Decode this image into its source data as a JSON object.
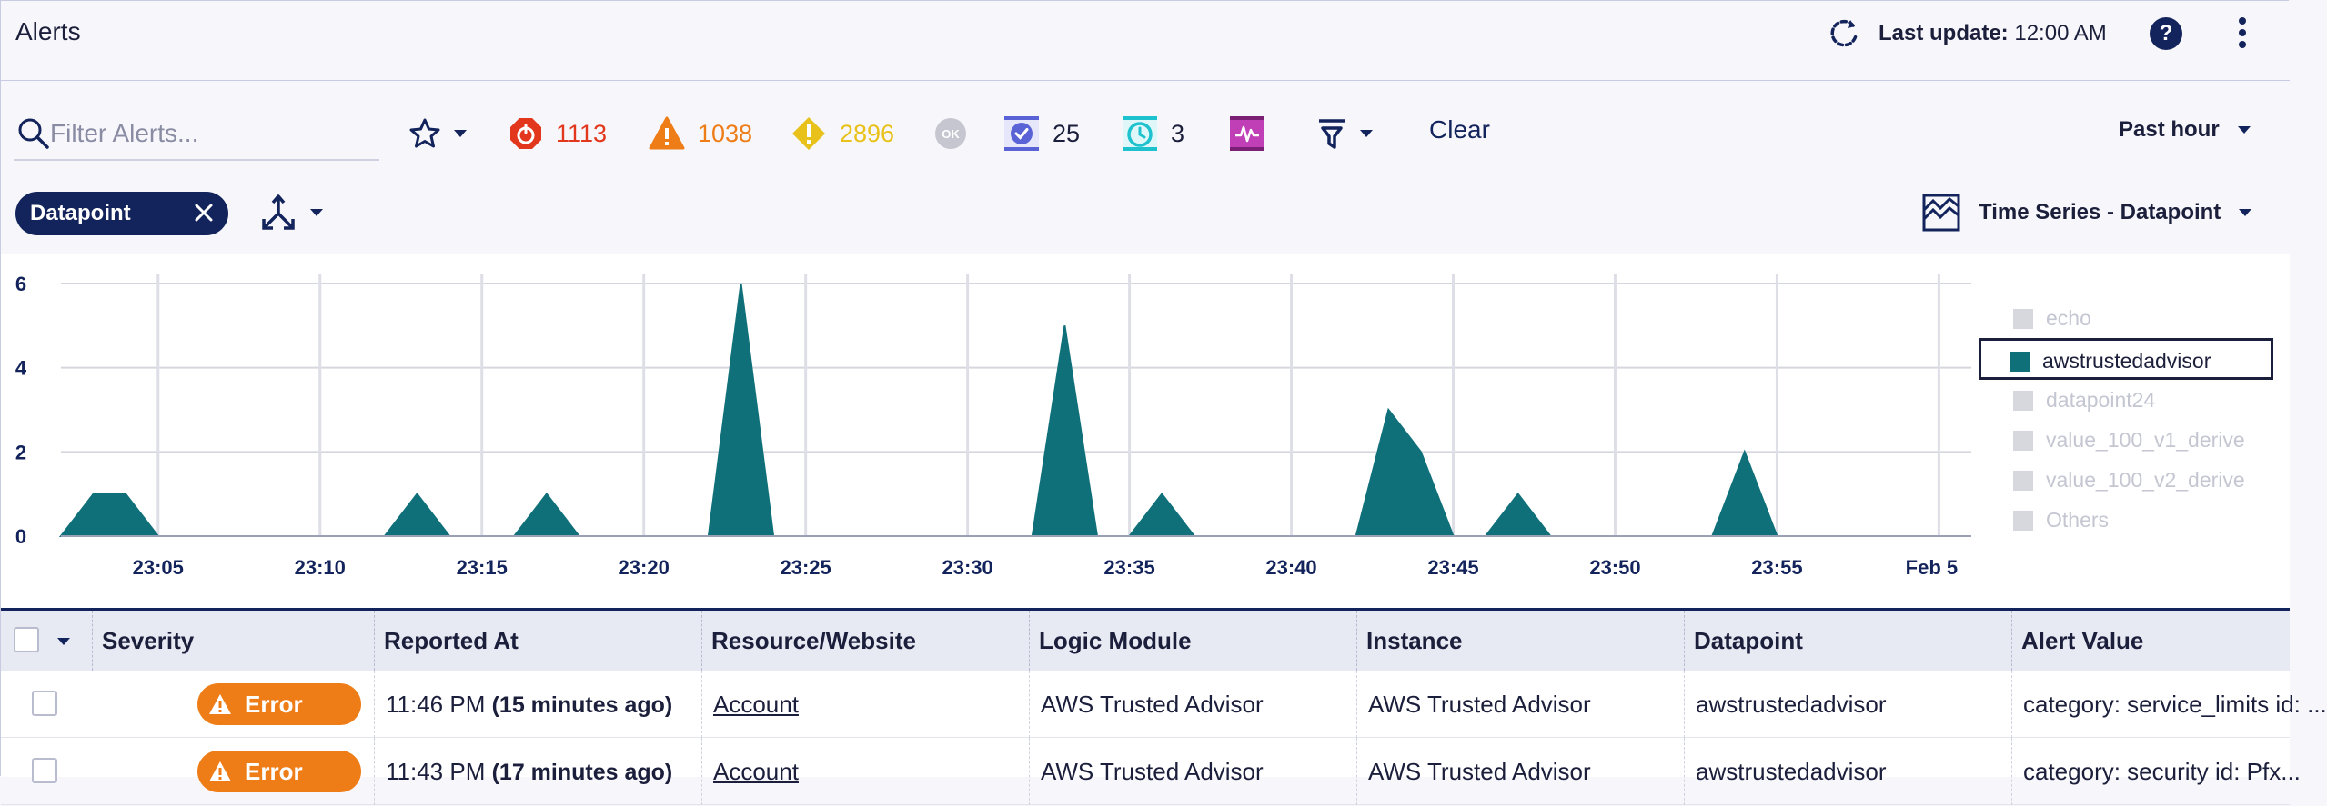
{
  "header": {
    "title": "Alerts",
    "last_update_label": "Last update:",
    "last_update_value": "12:00 AM",
    "help_label": "?"
  },
  "toolbar": {
    "search_placeholder": "Filter Alerts...",
    "counts": {
      "critical": "1113",
      "error": "1038",
      "warning": "2896",
      "acknowledged": "25",
      "sdt": "3"
    },
    "ok_label": "OK",
    "clear_label": "Clear",
    "time_range": "Past hour",
    "filter_chip": "Datapoint",
    "view_label": "Time Series - Datapoint"
  },
  "colors": {
    "navy": "#13235b",
    "critical": "#e2371d",
    "error": "#ee7d18",
    "warning": "#e8c21b",
    "acknowledged": "#5a63d6",
    "sdt": "#1ec2cf",
    "anomaly": "#c03fb7",
    "series": "#10707a"
  },
  "chart_data": {
    "type": "area",
    "title": "",
    "xlabel": "",
    "ylabel": "",
    "ylim": [
      0,
      6
    ],
    "yticks": [
      "0",
      "2",
      "4",
      "6"
    ],
    "xticks": [
      "23:05",
      "23:10",
      "23:15",
      "23:20",
      "23:25",
      "23:30",
      "23:35",
      "23:40",
      "23:45",
      "23:50",
      "23:55",
      "Feb 5"
    ],
    "x_minutes": [
      23.1,
      24.1,
      25.1,
      26.1,
      27.1,
      28.1,
      29.1,
      30.1,
      31.1,
      32.1,
      33.1,
      34.1,
      35.1,
      36.1,
      37.1,
      38.1,
      39.1,
      40.1,
      41.1,
      42.1,
      43.1,
      44.1,
      45.1,
      46.1,
      47.1,
      48.1,
      49.1,
      50.1,
      51.1,
      52.1,
      53.1,
      54.1,
      55.1,
      56.1,
      57.1,
      58.1,
      59.1,
      60.1,
      61.1,
      62.1,
      63.1,
      64.1,
      65.1,
      66.1,
      67.1,
      68.1,
      69.1,
      70.1,
      71.1,
      72.1,
      73.1,
      74.1,
      75.1,
      76.1,
      77.1,
      78.1,
      79.1,
      80.1,
      81.1,
      82.1,
      83.1
    ],
    "series": [
      {
        "name": "awstrustedadvisor",
        "points": [
          [
            0.0,
            0
          ],
          [
            1.0,
            1
          ],
          [
            2.0,
            1
          ],
          [
            3.0,
            0
          ],
          [
            10.0,
            0
          ],
          [
            11.0,
            1
          ],
          [
            12.0,
            0
          ],
          [
            14.0,
            0
          ],
          [
            15.0,
            1
          ],
          [
            16.0,
            0
          ],
          [
            20.0,
            0
          ],
          [
            21.0,
            6
          ],
          [
            22.0,
            0
          ],
          [
            30.0,
            0
          ],
          [
            31.0,
            5
          ],
          [
            32.0,
            0
          ],
          [
            33.0,
            0
          ],
          [
            34.0,
            1
          ],
          [
            35.0,
            0
          ],
          [
            40.0,
            0
          ],
          [
            41.0,
            3
          ],
          [
            42.0,
            2
          ],
          [
            43.0,
            0
          ],
          [
            44.0,
            0
          ],
          [
            45.0,
            1
          ],
          [
            46.0,
            0
          ],
          [
            51.0,
            0
          ],
          [
            52.0,
            2
          ],
          [
            53.0,
            0
          ],
          [
            59.0,
            0
          ]
        ]
      }
    ],
    "legend": [
      "echo",
      "awstrustedadvisor",
      "datapoint24",
      "value_100_v1_derive",
      "value_100_v2_derive",
      "Others"
    ],
    "legend_active": "awstrustedadvisor",
    "legend_position": "right",
    "grid": true
  },
  "table": {
    "columns": [
      "Severity",
      "Reported At",
      "Resource/Website",
      "Logic Module",
      "Instance",
      "Datapoint",
      "Alert Value"
    ],
    "rows": [
      {
        "severity": "Error",
        "reported_time": "11:46 PM",
        "reported_ago": "(15 minutes ago)",
        "resource": "Account",
        "logic_module": "AWS Trusted Advisor",
        "instance": "AWS Trusted Advisor",
        "datapoint": "awstrustedadvisor",
        "alert_value": "category: service_limits id: ..."
      },
      {
        "severity": "Error",
        "reported_time": "11:43 PM",
        "reported_ago": "(17 minutes ago)",
        "resource": "Account",
        "logic_module": "AWS Trusted Advisor",
        "instance": "AWS Trusted Advisor",
        "datapoint": "awstrustedadvisor",
        "alert_value": "category: security id: Pfx..."
      }
    ]
  }
}
